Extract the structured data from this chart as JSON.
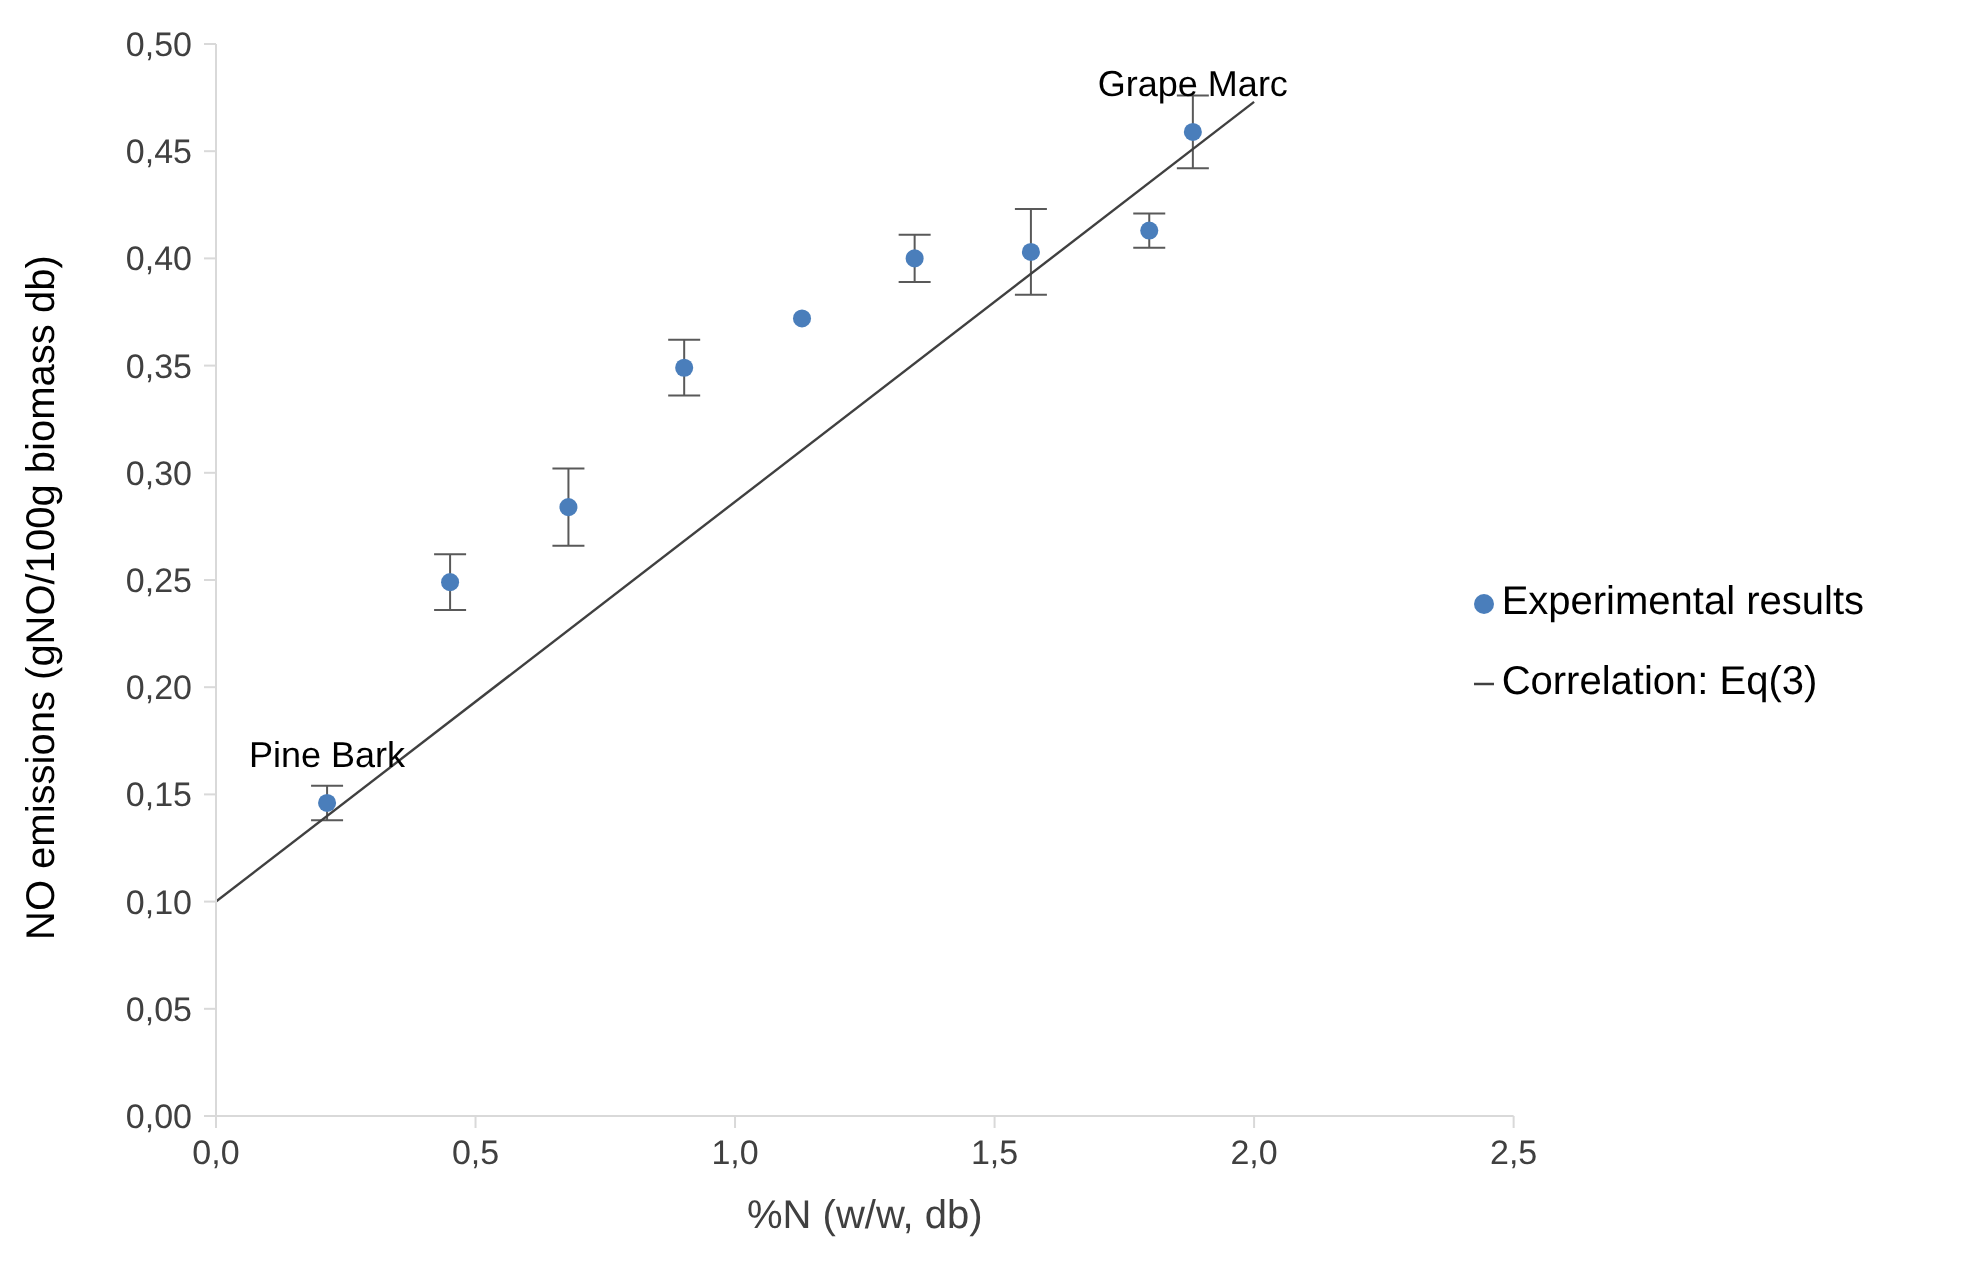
{
  "chart_data": {
    "type": "scatter",
    "xlabel": "%N (w/w, db)",
    "ylabel": "NO emissions  (gNO/100g biomass db)",
    "xlim": [
      0,
      2.5
    ],
    "xticks": [
      {
        "value": 0,
        "label": "0,0"
      },
      {
        "value": 0.5,
        "label": "0,5"
      },
      {
        "value": 1,
        "label": "1,0"
      },
      {
        "value": 1.5,
        "label": "1,5"
      },
      {
        "value": 2,
        "label": "2,0"
      },
      {
        "value": 2.5,
        "label": "2,5"
      }
    ],
    "ylim": [
      0,
      0.5
    ],
    "yticks": [
      {
        "value": 0,
        "label": "0,00"
      },
      {
        "value": 0.05,
        "label": "0,05"
      },
      {
        "value": 0.1,
        "label": "0,10"
      },
      {
        "value": 0.15,
        "label": "0,15"
      },
      {
        "value": 0.2,
        "label": "0,20"
      },
      {
        "value": 0.25,
        "label": "0,25"
      },
      {
        "value": 0.3,
        "label": "0,30"
      },
      {
        "value": 0.35,
        "label": "0,35"
      },
      {
        "value": 0.4,
        "label": "0,40"
      },
      {
        "value": 0.45,
        "label": "0,45"
      },
      {
        "value": 0.5,
        "label": "0,50"
      }
    ],
    "grid": false,
    "legend": "right",
    "series": [
      {
        "name": "Experimental results",
        "color": "#4a7ebb",
        "marker": "circle",
        "x": [
          0.214,
          0.451,
          0.679,
          0.902,
          1.129,
          1.346,
          1.57,
          1.798,
          1.882
        ],
        "values": [
          0.146,
          0.249,
          0.284,
          0.349,
          0.372,
          0.4,
          0.403,
          0.413,
          0.459
        ],
        "errors": [
          0.008,
          0.013,
          0.018,
          0.013,
          null,
          0.011,
          0.02,
          0.008,
          0.017
        ]
      },
      {
        "name": "Correlation: Eq(3)",
        "type": "line",
        "color": "#404040",
        "marker": "none",
        "line_style": "solid",
        "x": [
          0,
          2
        ],
        "values": [
          0.1,
          0.473
        ]
      }
    ],
    "annotations": [
      {
        "text": "Pine Bark",
        "x": 0.214,
        "y": 0.146
      },
      {
        "text": "Grape Marc",
        "x": 1.882,
        "y": 0.459
      }
    ]
  }
}
